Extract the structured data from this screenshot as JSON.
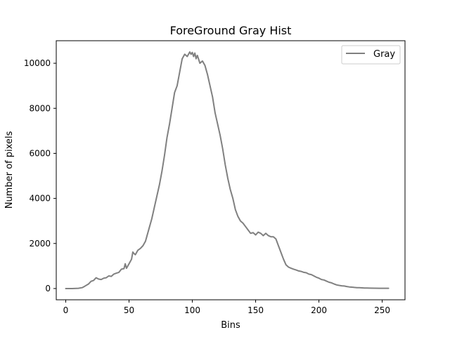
{
  "chart_data": {
    "type": "line",
    "title": "ForeGround Gray Hist",
    "xlabel": "Bins",
    "ylabel": "Number of pixels",
    "xlim": [
      -7.5,
      268
    ],
    "ylim": [
      -500,
      11000
    ],
    "xticks": [
      0,
      50,
      100,
      150,
      200,
      250
    ],
    "yticks": [
      0,
      2000,
      4000,
      6000,
      8000,
      10000
    ],
    "grid": false,
    "legend_position": "top-right",
    "series": [
      {
        "name": "Gray",
        "color": "#808080",
        "points": [
          [
            0,
            0
          ],
          [
            5,
            0
          ],
          [
            10,
            10
          ],
          [
            13,
            40
          ],
          [
            15,
            100
          ],
          [
            18,
            200
          ],
          [
            20,
            320
          ],
          [
            22,
            360
          ],
          [
            24,
            480
          ],
          [
            26,
            420
          ],
          [
            28,
            400
          ],
          [
            30,
            460
          ],
          [
            32,
            480
          ],
          [
            34,
            560
          ],
          [
            36,
            540
          ],
          [
            38,
            640
          ],
          [
            40,
            680
          ],
          [
            42,
            720
          ],
          [
            44,
            860
          ],
          [
            46,
            880
          ],
          [
            47,
            1100
          ],
          [
            48,
            900
          ],
          [
            50,
            1100
          ],
          [
            52,
            1300
          ],
          [
            53,
            1620
          ],
          [
            54,
            1550
          ],
          [
            55,
            1500
          ],
          [
            57,
            1700
          ],
          [
            59,
            1780
          ],
          [
            61,
            1900
          ],
          [
            63,
            2100
          ],
          [
            64,
            2300
          ],
          [
            66,
            2700
          ],
          [
            68,
            3100
          ],
          [
            70,
            3600
          ],
          [
            72,
            4100
          ],
          [
            74,
            4600
          ],
          [
            76,
            5200
          ],
          [
            78,
            5900
          ],
          [
            80,
            6700
          ],
          [
            82,
            7300
          ],
          [
            84,
            8000
          ],
          [
            86,
            8700
          ],
          [
            88,
            9000
          ],
          [
            90,
            9600
          ],
          [
            92,
            10200
          ],
          [
            94,
            10400
          ],
          [
            96,
            10300
          ],
          [
            98,
            10500
          ],
          [
            99,
            10400
          ],
          [
            100,
            10480
          ],
          [
            101,
            10300
          ],
          [
            102,
            10450
          ],
          [
            103,
            10200
          ],
          [
            104,
            10350
          ],
          [
            106,
            10000
          ],
          [
            108,
            10100
          ],
          [
            110,
            9900
          ],
          [
            112,
            9500
          ],
          [
            114,
            9000
          ],
          [
            116,
            8500
          ],
          [
            118,
            7800
          ],
          [
            120,
            7300
          ],
          [
            122,
            6800
          ],
          [
            124,
            6200
          ],
          [
            126,
            5500
          ],
          [
            128,
            4900
          ],
          [
            130,
            4400
          ],
          [
            132,
            4000
          ],
          [
            134,
            3500
          ],
          [
            136,
            3200
          ],
          [
            138,
            3000
          ],
          [
            140,
            2900
          ],
          [
            142,
            2750
          ],
          [
            144,
            2600
          ],
          [
            146,
            2450
          ],
          [
            148,
            2480
          ],
          [
            150,
            2380
          ],
          [
            152,
            2500
          ],
          [
            154,
            2450
          ],
          [
            156,
            2350
          ],
          [
            158,
            2450
          ],
          [
            160,
            2350
          ],
          [
            162,
            2300
          ],
          [
            164,
            2300
          ],
          [
            166,
            2200
          ],
          [
            168,
            1900
          ],
          [
            170,
            1600
          ],
          [
            172,
            1300
          ],
          [
            174,
            1050
          ],
          [
            176,
            950
          ],
          [
            178,
            900
          ],
          [
            180,
            860
          ],
          [
            182,
            820
          ],
          [
            184,
            780
          ],
          [
            186,
            760
          ],
          [
            188,
            720
          ],
          [
            190,
            700
          ],
          [
            192,
            640
          ],
          [
            194,
            620
          ],
          [
            196,
            560
          ],
          [
            198,
            500
          ],
          [
            200,
            460
          ],
          [
            202,
            400
          ],
          [
            204,
            380
          ],
          [
            206,
            330
          ],
          [
            208,
            280
          ],
          [
            210,
            250
          ],
          [
            212,
            200
          ],
          [
            214,
            160
          ],
          [
            216,
            140
          ],
          [
            218,
            120
          ],
          [
            220,
            110
          ],
          [
            222,
            90
          ],
          [
            224,
            70
          ],
          [
            226,
            60
          ],
          [
            228,
            50
          ],
          [
            230,
            40
          ],
          [
            232,
            35
          ],
          [
            234,
            30
          ],
          [
            236,
            25
          ],
          [
            238,
            20
          ],
          [
            240,
            18
          ],
          [
            244,
            15
          ],
          [
            248,
            12
          ],
          [
            252,
            10
          ],
          [
            255,
            10
          ]
        ]
      }
    ]
  }
}
